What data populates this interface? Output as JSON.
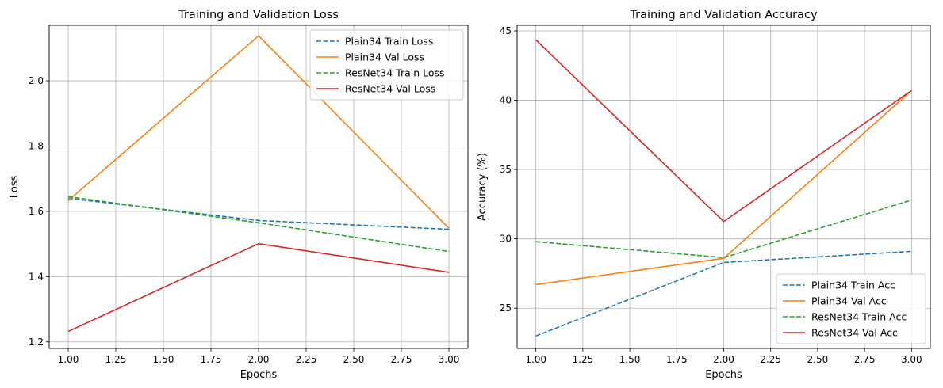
{
  "chart_data": [
    {
      "type": "line",
      "title": "Training and Validation Loss",
      "xlabel": "Epochs",
      "ylabel": "Loss",
      "xlim": [
        0.9,
        3.1
      ],
      "ylim": [
        1.18,
        2.17
      ],
      "xticks": [
        "1.00",
        "1.25",
        "1.50",
        "1.75",
        "2.00",
        "2.25",
        "2.50",
        "2.75",
        "3.00"
      ],
      "yticks": [
        "1.2",
        "1.4",
        "1.6",
        "1.8",
        "2.0"
      ],
      "grid": true,
      "legend_position": "top-right",
      "x": [
        1,
        2,
        3
      ],
      "series": [
        {
          "name": "Plain34 Train Loss",
          "values": [
            1.64,
            1.572,
            1.545
          ],
          "color": "#1f77b4",
          "style": "dashed"
        },
        {
          "name": "Plain34 Val Loss",
          "values": [
            1.633,
            2.138,
            1.548
          ],
          "color": "#ff7f0e",
          "style": "solid"
        },
        {
          "name": "ResNet34 Train Loss",
          "values": [
            1.645,
            1.565,
            1.477
          ],
          "color": "#2ca02c",
          "style": "dashed"
        },
        {
          "name": "ResNet34 Val Loss",
          "values": [
            1.232,
            1.501,
            1.413
          ],
          "color": "#d62728",
          "style": "solid"
        }
      ]
    },
    {
      "type": "line",
      "title": "Training and Validation Accuracy",
      "xlabel": "Epochs",
      "ylabel": "Accuracy (%)",
      "xlim": [
        0.9,
        3.1
      ],
      "ylim": [
        22.1,
        45.4
      ],
      "xticks": [
        "1.00",
        "1.25",
        "1.50",
        "1.75",
        "2.00",
        "2.25",
        "2.50",
        "2.75",
        "3.00"
      ],
      "yticks": [
        "25",
        "30",
        "35",
        "40",
        "45"
      ],
      "grid": true,
      "legend_position": "bottom-right",
      "x": [
        1,
        2,
        3
      ],
      "series": [
        {
          "name": "Plain34 Train Acc",
          "values": [
            23.0,
            28.3,
            29.1
          ],
          "color": "#1f77b4",
          "style": "dashed"
        },
        {
          "name": "Plain34 Val Acc",
          "values": [
            26.7,
            28.6,
            40.7
          ],
          "color": "#ff7f0e",
          "style": "solid"
        },
        {
          "name": "ResNet34 Train Acc",
          "values": [
            29.8,
            28.65,
            32.8
          ],
          "color": "#2ca02c",
          "style": "dashed"
        },
        {
          "name": "ResNet34 Val Acc",
          "values": [
            44.35,
            31.25,
            40.7
          ],
          "color": "#d62728",
          "style": "solid"
        }
      ]
    }
  ]
}
